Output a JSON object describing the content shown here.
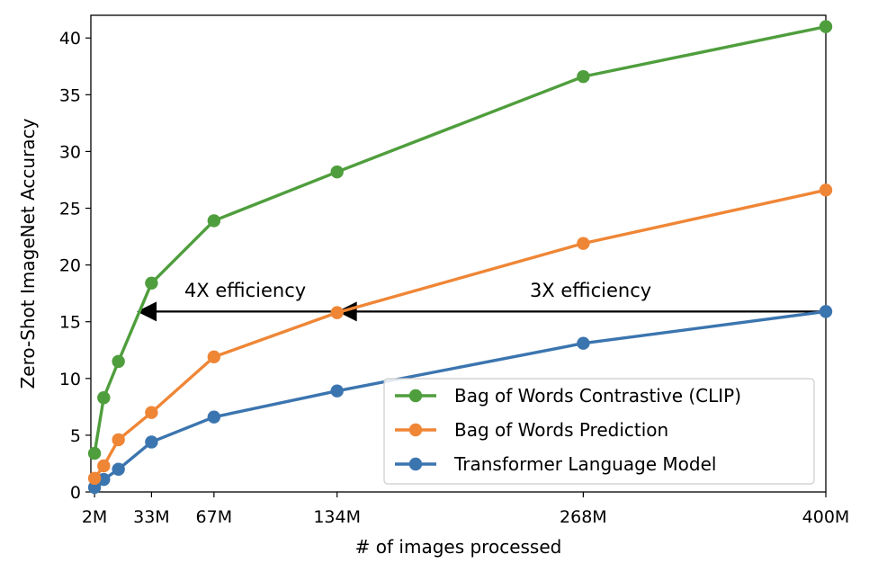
{
  "chart_data": {
    "type": "line",
    "xlabel": "# of images processed",
    "ylabel": "Zero-Shot ImageNet Accuracy",
    "xlim": [
      0,
      400
    ],
    "ylim": [
      0,
      42
    ],
    "x_ticks": [
      {
        "value": 2,
        "label": "2M"
      },
      {
        "value": 33,
        "label": "33M"
      },
      {
        "value": 67,
        "label": "67M"
      },
      {
        "value": 134,
        "label": "134M"
      },
      {
        "value": 268,
        "label": "268M"
      },
      {
        "value": 400,
        "label": "400M"
      }
    ],
    "y_ticks": [
      0,
      5,
      10,
      15,
      20,
      25,
      30,
      35,
      40
    ],
    "legend_position": "lower-right",
    "series": [
      {
        "name": "Bag of Words Contrastive (CLIP)",
        "color": "#4f9e3d",
        "points": [
          [
            2,
            3.4
          ],
          [
            7,
            8.3
          ],
          [
            15,
            11.5
          ],
          [
            33,
            18.4
          ],
          [
            67,
            23.9
          ],
          [
            134,
            28.2
          ],
          [
            268,
            36.6
          ],
          [
            400,
            41.0
          ]
        ]
      },
      {
        "name": "Bag of Words Prediction",
        "color": "#ef8636",
        "points": [
          [
            2,
            1.2
          ],
          [
            7,
            2.3
          ],
          [
            15,
            4.6
          ],
          [
            33,
            7.0
          ],
          [
            67,
            11.9
          ],
          [
            134,
            15.8
          ],
          [
            268,
            21.9
          ],
          [
            400,
            26.6
          ]
        ]
      },
      {
        "name": "Transformer Language Model",
        "color": "#3b75af",
        "points": [
          [
            2,
            0.4
          ],
          [
            7,
            1.1
          ],
          [
            15,
            2.0
          ],
          [
            33,
            4.4
          ],
          [
            67,
            6.6
          ],
          [
            134,
            8.9
          ],
          [
            268,
            13.1
          ],
          [
            400,
            15.9
          ]
        ]
      }
    ],
    "annotations": [
      {
        "text": "4X efficiency",
        "x": 84,
        "y": 17.2
      },
      {
        "text": "3X efficiency",
        "x": 272,
        "y": 17.2
      }
    ],
    "arrow": {
      "y": 15.9,
      "x_start": 400,
      "heads": [
        134,
        25
      ]
    }
  }
}
